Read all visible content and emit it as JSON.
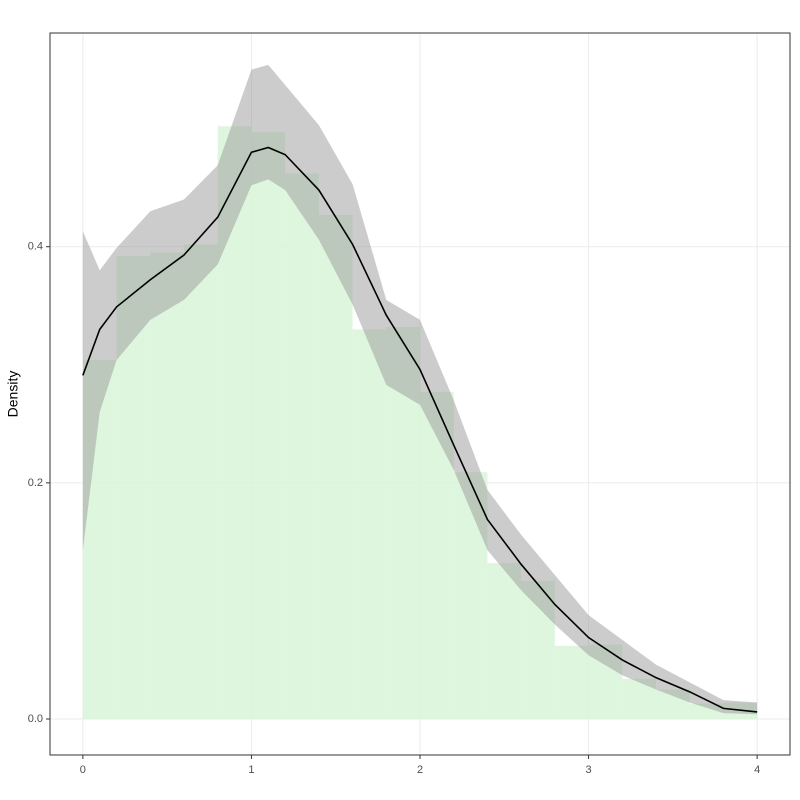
{
  "chart_data": {
    "type": "histogram",
    "y_label": "Density",
    "bins": [
      0,
      0.2,
      0.4,
      0.6,
      0.8,
      1.0,
      1.2,
      1.4,
      1.6,
      1.8,
      2.0,
      2.2,
      2.4,
      2.6,
      2.8,
      3.0,
      3.2,
      3.4,
      3.6,
      3.8,
      4.0
    ],
    "values": [
      0.304,
      0.392,
      0.395,
      0.402,
      0.502,
      0.497,
      0.462,
      0.427,
      0.33,
      0.332,
      0.277,
      0.209,
      0.132,
      0.117,
      0.062,
      0.063,
      0.034,
      0.025,
      0.013,
      0.014
    ],
    "color": "#d8f5d8",
    "density": {
      "x": [
        0,
        0.1,
        0.2,
        0.4,
        0.6,
        0.8,
        1.0,
        1.1,
        1.2,
        1.4,
        1.6,
        1.8,
        2.0,
        2.2,
        2.4,
        2.6,
        2.8,
        3.0,
        3.2,
        3.4,
        3.6,
        3.8,
        4.0
      ],
      "values": [
        0.291,
        0.33,
        0.349,
        0.372,
        0.393,
        0.425,
        0.48,
        0.484,
        0.478,
        0.448,
        0.402,
        0.342,
        0.296,
        0.232,
        0.169,
        0.131,
        0.097,
        0.069,
        0.05,
        0.035,
        0.023,
        0.009,
        0.006
      ],
      "lower": [
        0.143,
        0.26,
        0.304,
        0.338,
        0.355,
        0.385,
        0.452,
        0.457,
        0.448,
        0.406,
        0.351,
        0.283,
        0.266,
        0.211,
        0.143,
        0.109,
        0.08,
        0.054,
        0.037,
        0.025,
        0.014,
        0.005,
        0.004
      ],
      "upper": [
        0.413,
        0.38,
        0.399,
        0.43,
        0.44,
        0.469,
        0.55,
        0.554,
        0.537,
        0.503,
        0.453,
        0.355,
        0.338,
        0.27,
        0.194,
        0.156,
        0.122,
        0.088,
        0.067,
        0.046,
        0.031,
        0.016,
        0.014
      ],
      "color": "#000000",
      "band_color": "#999999"
    },
    "xlim": [
      -0.195,
      4.195
    ],
    "ylim": [
      -0.0305,
      0.581
    ],
    "xticks": [
      0,
      1,
      2,
      3,
      4
    ],
    "yticks": [
      {
        "value": 0,
        "label": "0.0"
      },
      0.2,
      0.4
    ],
    "grid": true
  }
}
